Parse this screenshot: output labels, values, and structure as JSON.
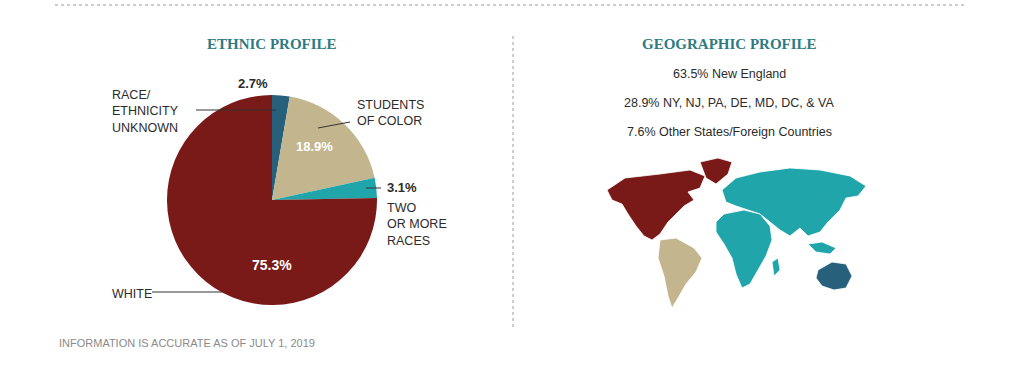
{
  "chart_data": {
    "type": "pie",
    "title": "ETHNIC PROFILE",
    "categories": [
      "RACE/\nETHNICITY\nUNKNOWN",
      "STUDENTS\nOF COLOR",
      "TWO\nOR MORE\nRACES",
      "WHITE"
    ],
    "values": [
      2.7,
      18.9,
      3.1,
      75.3
    ],
    "value_labels": [
      "2.7%",
      "18.9%",
      "3.1%",
      "75.3%"
    ],
    "colors": [
      "#27607a",
      "#c3b68f",
      "#1fa5aa",
      "#7a1a18"
    ],
    "data_labels": true
  },
  "geographic_profile": {
    "title": "GEOGRAPHIC PROFILE",
    "lines": [
      "63.5% New England",
      "28.9% NY, NJ, PA, DE, MD, DC, & VA",
      "7.6% Other States/Foreign Countries"
    ]
  },
  "footnote": "INFORMATION IS ACCURATE AS OF JULY 1, 2019"
}
